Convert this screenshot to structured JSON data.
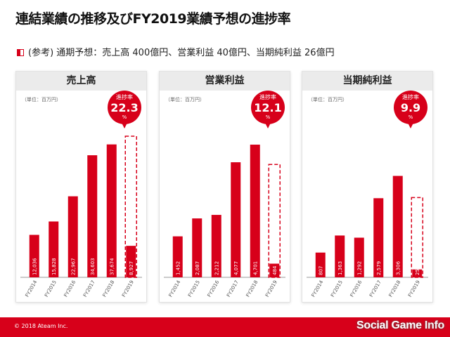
{
  "title": "連結業績の推移及びFY2019業績予想の進捗率",
  "note": "(参考) 通期予想：売上高 400億円、営業利益 40億円、当期純利益 26億円",
  "colors": {
    "accent": "#d7001a",
    "panel_header": "#ebebeb"
  },
  "chart_data": [
    {
      "type": "bar",
      "title": "売上高",
      "unit_label": "（単位：百万円）",
      "progress_label": "進捗率",
      "progress_value": "22.3",
      "progress_unit": "%",
      "categories": [
        "FY2014",
        "FY2015",
        "FY2016",
        "FY2017",
        "FY2018",
        "FY2019"
      ],
      "values": [
        12036,
        15828,
        22967,
        34603,
        37674,
        8927
      ],
      "value_labels": [
        "12,036",
        "15,828",
        "22,967",
        "34,603",
        "37,674",
        "8,927"
      ],
      "forecast": 40000,
      "ylim": [
        0,
        40000
      ]
    },
    {
      "type": "bar",
      "title": "営業利益",
      "unit_label": "（単位：百万円）",
      "progress_label": "進捗率",
      "progress_value": "12.1",
      "progress_unit": "%",
      "categories": [
        "FY2014",
        "FY2015",
        "FY2016",
        "FY2017",
        "FY2018",
        "FY2019"
      ],
      "values": [
        1452,
        2087,
        2212,
        4077,
        4701,
        484
      ],
      "value_labels": [
        "1,452",
        "2,087",
        "2,212",
        "4,077",
        "4,701",
        "484"
      ],
      "forecast": 4000,
      "ylim": [
        0,
        5000
      ]
    },
    {
      "type": "bar",
      "title": "当期純利益",
      "unit_label": "（単位：百万円）",
      "progress_label": "進捗率",
      "progress_value": "9.9",
      "progress_unit": "%",
      "categories": [
        "FY2014",
        "FY2015",
        "FY2016",
        "FY2017",
        "FY2018",
        "FY2019"
      ],
      "values": [
        807,
        1363,
        1292,
        2579,
        3306,
        257
      ],
      "value_labels": [
        "807",
        "1,363",
        "1,292",
        "2,579",
        "3,306",
        "257"
      ],
      "forecast": 2600,
      "ylim": [
        0,
        4600
      ]
    }
  ],
  "footer": {
    "copyright": "© 2018 Ateam Inc.",
    "watermark_main": "Social Game ",
    "watermark_info": "Info"
  }
}
